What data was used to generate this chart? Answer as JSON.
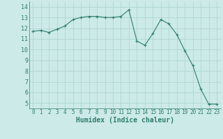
{
  "x": [
    0,
    1,
    2,
    3,
    4,
    5,
    6,
    7,
    8,
    9,
    10,
    11,
    12,
    13,
    14,
    15,
    16,
    17,
    18,
    19,
    20,
    21,
    22,
    23
  ],
  "y": [
    11.7,
    11.8,
    11.6,
    11.9,
    12.2,
    12.8,
    13.0,
    13.1,
    13.1,
    13.0,
    13.0,
    13.1,
    13.7,
    10.8,
    10.4,
    11.5,
    12.8,
    12.4,
    11.4,
    9.9,
    8.5,
    6.3,
    4.9,
    4.9
  ],
  "line_color": "#2e7d6e",
  "marker": "+",
  "marker_size": 3,
  "bg_color": "#cceae7",
  "grid_color": "#aad4d0",
  "xlabel": "Humidex (Indice chaleur)",
  "xlim": [
    -0.5,
    23.5
  ],
  "ylim": [
    4.5,
    14.5
  ],
  "yticks": [
    5,
    6,
    7,
    8,
    9,
    10,
    11,
    12,
    13,
    14
  ],
  "xticks": [
    0,
    1,
    2,
    3,
    4,
    5,
    6,
    7,
    8,
    9,
    10,
    11,
    12,
    13,
    14,
    15,
    16,
    17,
    18,
    19,
    20,
    21,
    22,
    23
  ],
  "tick_color": "#2e7d6e",
  "label_color": "#2e7d6e"
}
